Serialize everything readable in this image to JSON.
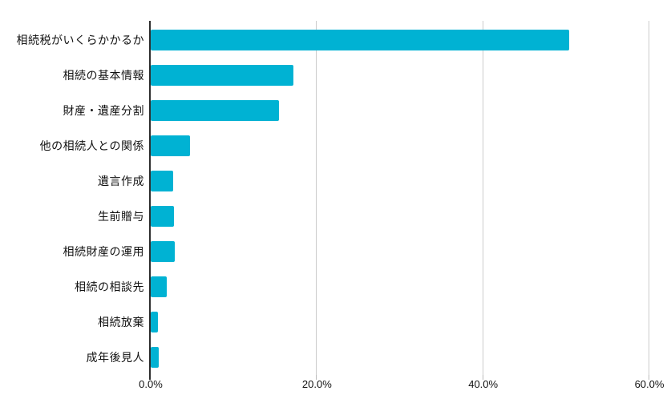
{
  "chart_data": {
    "type": "bar",
    "orientation": "horizontal",
    "title": "",
    "xlabel": "",
    "ylabel": "",
    "categories": [
      "相続税がいくらかかるか",
      "相続の基本情報",
      "財産・遺産分割",
      "他の相続人との関係",
      "遺言作成",
      "生前贈与",
      "相続財産の運用",
      "相続の相談先",
      "相続放棄",
      "成年後見人"
    ],
    "values": [
      50.4,
      17.2,
      15.4,
      4.7,
      2.7,
      2.8,
      2.9,
      1.9,
      0.9,
      1.0
    ],
    "xlim": [
      0,
      60
    ],
    "x_tick_values": [
      0,
      20,
      40,
      60
    ],
    "x_tick_labels": [
      "0.0%",
      "20.0%",
      "40.0%",
      "60.0%"
    ],
    "grid": true,
    "legend": false,
    "colors": {
      "bar": "#00b2d3",
      "gridline": "#cccccc",
      "axis_line": "#2e2e2e",
      "text": "#111111",
      "background": "#ffffff"
    }
  }
}
